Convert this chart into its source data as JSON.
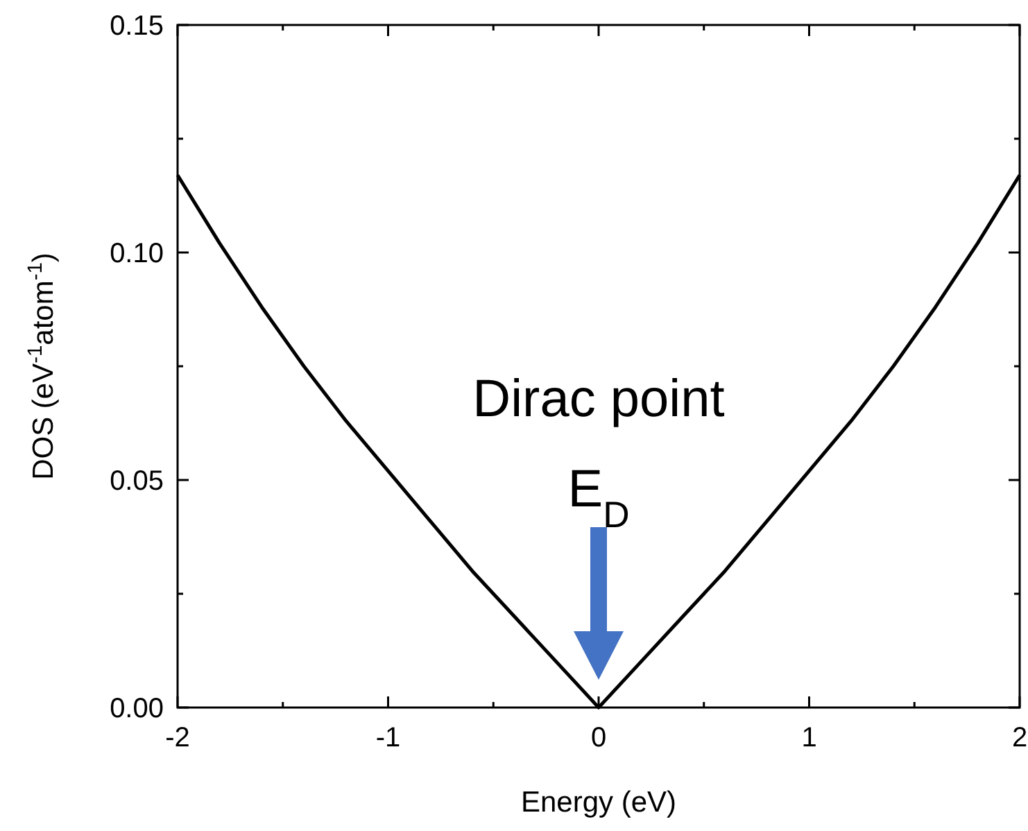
{
  "chart_data": {
    "type": "line",
    "xlabel": "Energy (eV)",
    "ylabel": "DOS (eV$^{-1}$atom$^{-1}$)",
    "x": [
      -2,
      -1.8,
      -1.6,
      -1.4,
      -1.2,
      -1,
      -0.8,
      -0.6,
      -0.4,
      -0.2,
      0,
      0.2,
      0.4,
      0.6,
      0.8,
      1,
      1.2,
      1.4,
      1.6,
      1.8,
      2
    ],
    "series": [
      {
        "color": "#000000",
        "values": [
          0.117,
          0.102,
          0.088,
          0.075,
          0.063,
          0.052,
          0.041,
          0.03,
          0.02,
          0.01,
          0,
          0.01,
          0.02,
          0.03,
          0.041,
          0.052,
          0.063,
          0.075,
          0.088,
          0.102,
          0.117
        ]
      }
    ],
    "xlim": [
      -2,
      2
    ],
    "ylim": [
      0,
      0.15
    ],
    "xticks": [
      -2,
      {
        "value": -1.5,
        "label": null
      },
      -1,
      {
        "value": -0.5,
        "label": null
      },
      0,
      {
        "value": 0.5,
        "label": null
      },
      1,
      {
        "value": 1.5,
        "label": null
      },
      2
    ],
    "yticks": [
      {
        "value": 0,
        "label": "0.00"
      },
      {
        "value": 0.025,
        "label": null
      },
      {
        "value": 0.05,
        "label": "0.05"
      },
      {
        "value": 0.075,
        "label": null
      },
      {
        "value": 0.1,
        "label": "0.10"
      },
      {
        "value": 0.125,
        "label": null
      },
      {
        "value": 0.15,
        "label": "0.15"
      }
    ],
    "annotations": [
      "Dirac point",
      "E$_{D}$"
    ],
    "grid": false,
    "marker": "none",
    "line_style": "solid"
  }
}
